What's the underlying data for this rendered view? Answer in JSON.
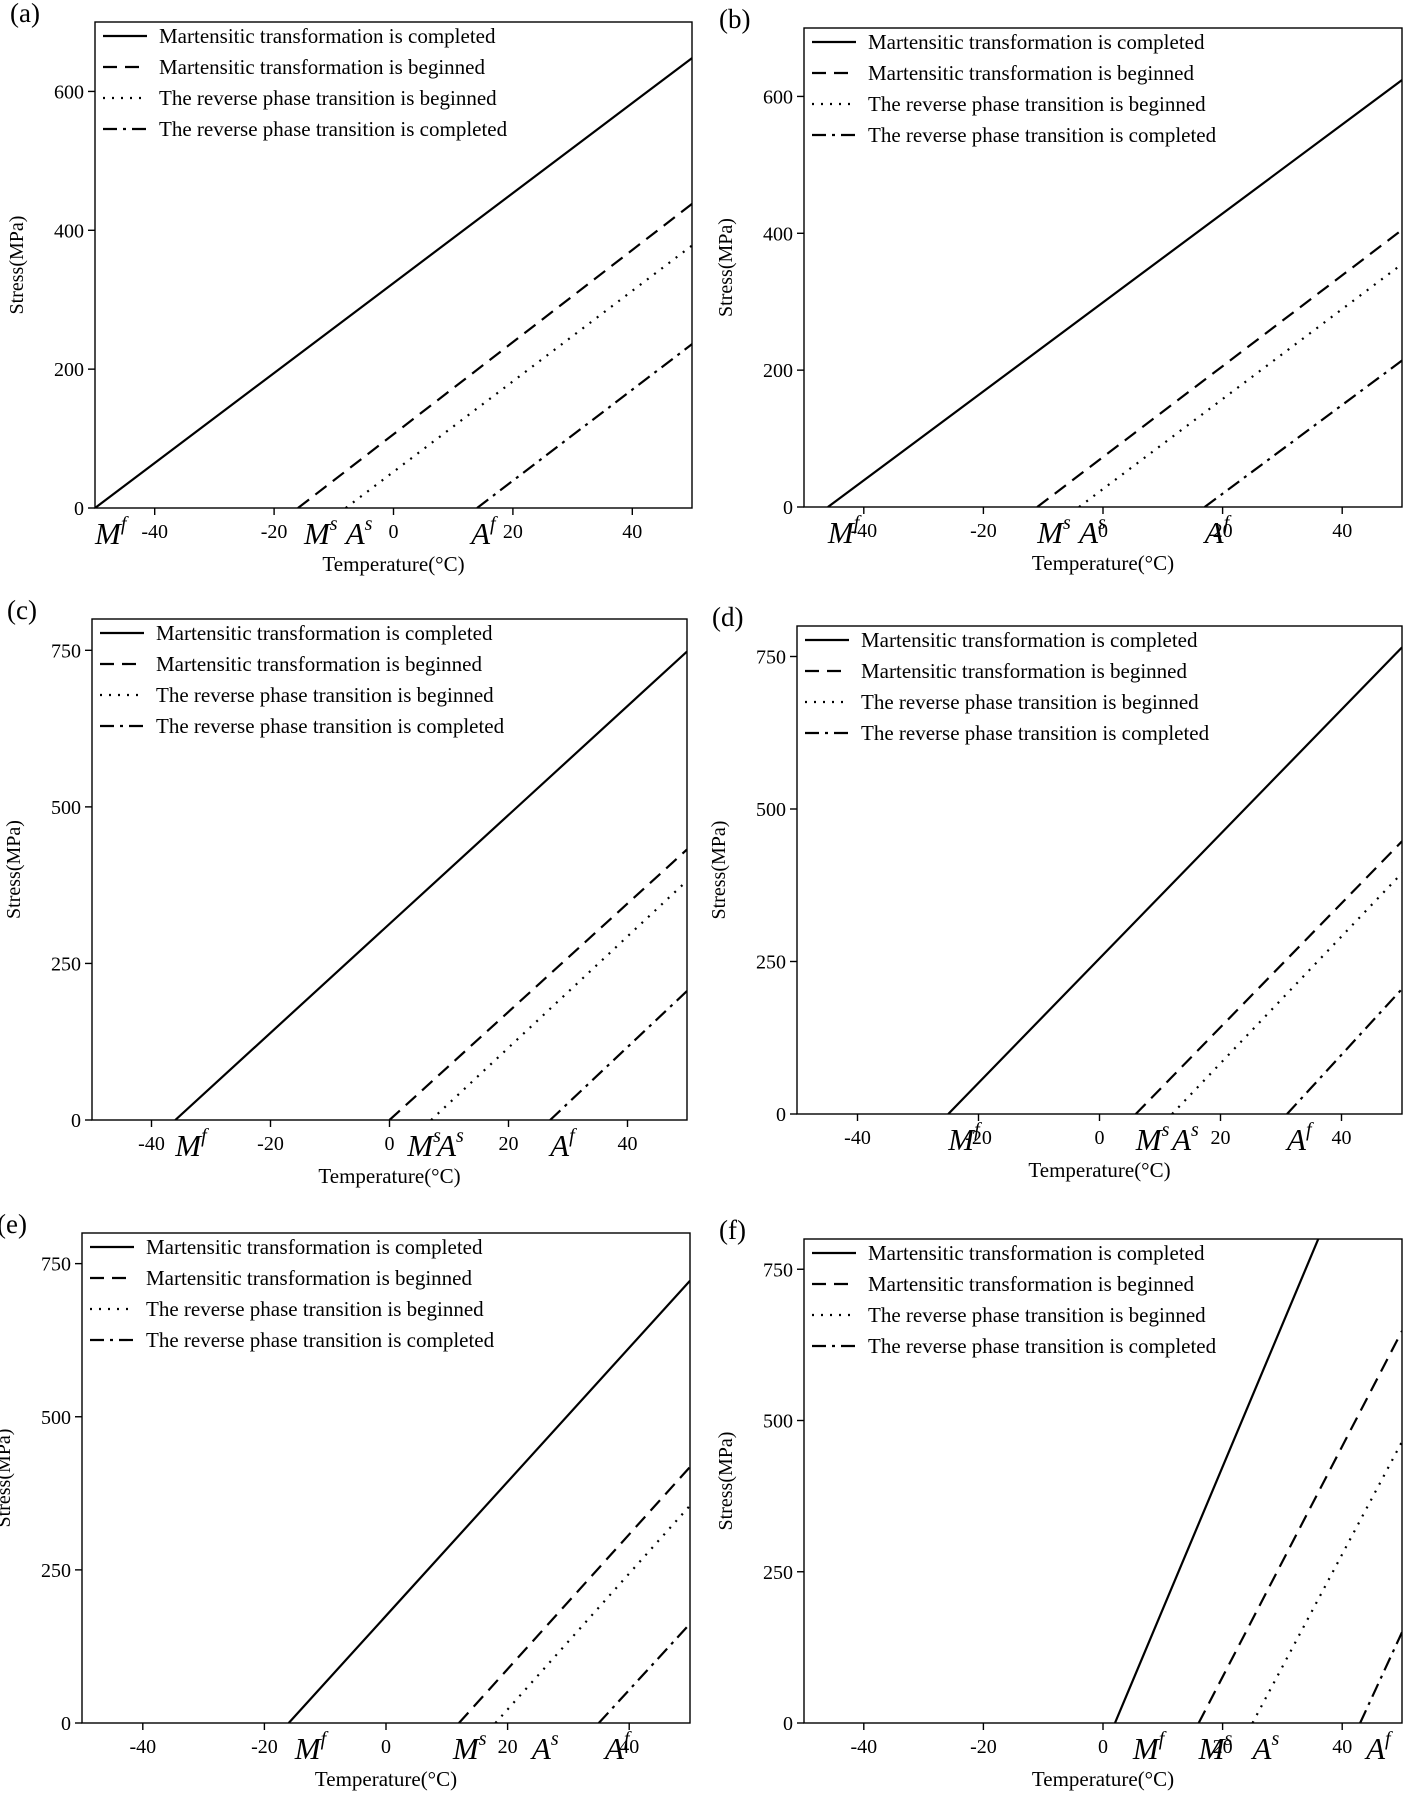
{
  "legend_labels": [
    "Martensitic transformation is completed",
    "Martensitic transformation is beginned",
    "The reverse phase transition is beginned",
    "The reverse phase transition is completed"
  ],
  "line_styles": [
    "solid",
    "dashed",
    "dotted",
    "dashdot"
  ],
  "colors": {
    "line": "#000000",
    "background": "#ffffff"
  },
  "chart_data": [
    {
      "type": "line",
      "panel_label": "(a)",
      "xlabel": "Temperature(°C)",
      "ylabel": "Stress(MPa)",
      "xlim": [
        -50,
        50
      ],
      "ylim": [
        0,
        700
      ],
      "xticks": [
        "-40",
        "-20",
        "0",
        "20",
        "40"
      ],
      "xtick_values": [
        -40,
        -20,
        0,
        20,
        40
      ],
      "yticks": [
        "0",
        "200",
        "400",
        "600"
      ],
      "ytick_values": [
        0,
        200,
        400,
        600
      ],
      "legend_position": "top-left",
      "series": [
        {
          "name": "Martensitic transformation is completed",
          "style": "solid",
          "x": [
            -50,
            50
          ],
          "y": [
            0,
            648
          ]
        },
        {
          "name": "Martensitic transformation is beginned",
          "style": "dashed",
          "x": [
            -16,
            50
          ],
          "y": [
            0,
            438
          ]
        },
        {
          "name": "The reverse phase transition is beginned",
          "style": "dotted",
          "x": [
            -8,
            50
          ],
          "y": [
            0,
            378
          ]
        },
        {
          "name": "The reverse phase transition is completed",
          "style": "dashdot",
          "x": [
            14,
            50
          ],
          "y": [
            0,
            236
          ]
        }
      ],
      "annotations": [
        {
          "base": "M",
          "sup": "f",
          "x": -50
        },
        {
          "base": "M",
          "sup": "s",
          "x": -15
        },
        {
          "base": "A",
          "sup": "s",
          "x": -8
        },
        {
          "base": "A",
          "sup": "f",
          "x": 13
        }
      ]
    },
    {
      "type": "line",
      "panel_label": "(b)",
      "xlabel": "Temperature(°C)",
      "ylabel": "Stress(MPa)",
      "xlim": [
        -50,
        50
      ],
      "ylim": [
        0,
        700
      ],
      "xticks": [
        "-40",
        "-20",
        "0",
        "20",
        "40"
      ],
      "xtick_values": [
        -40,
        -20,
        0,
        20,
        40
      ],
      "yticks": [
        "0",
        "200",
        "400",
        "600"
      ],
      "ytick_values": [
        0,
        200,
        400,
        600
      ],
      "legend_position": "top-left",
      "series": [
        {
          "name": "Martensitic transformation is completed",
          "style": "solid",
          "x": [
            -46,
            50
          ],
          "y": [
            0,
            624
          ]
        },
        {
          "name": "Martensitic transformation is beginned",
          "style": "dashed",
          "x": [
            -11,
            50
          ],
          "y": [
            0,
            405
          ]
        },
        {
          "name": "The reverse phase transition is beginned",
          "style": "dotted",
          "x": [
            -4,
            50
          ],
          "y": [
            0,
            355
          ]
        },
        {
          "name": "The reverse phase transition is completed",
          "style": "dashdot",
          "x": [
            17,
            50
          ],
          "y": [
            0,
            214
          ]
        }
      ],
      "annotations": [
        {
          "base": "M",
          "sup": "f",
          "x": -46
        },
        {
          "base": "M",
          "sup": "s",
          "x": -11
        },
        {
          "base": "A",
          "sup": "s",
          "x": -4
        },
        {
          "base": "A",
          "sup": "f",
          "x": 17
        }
      ]
    },
    {
      "type": "line",
      "panel_label": "(c)",
      "xlabel": "Temperature(°C)",
      "ylabel": "Stress(MPa)",
      "xlim": [
        -50,
        50
      ],
      "ylim": [
        0,
        800
      ],
      "xticks": [
        "-40",
        "-20",
        "0",
        "20",
        "40"
      ],
      "xtick_values": [
        -40,
        -20,
        0,
        20,
        40
      ],
      "yticks": [
        "0",
        "250",
        "500",
        "750"
      ],
      "ytick_values": [
        0,
        250,
        500,
        750
      ],
      "legend_position": "top-left",
      "series": [
        {
          "name": "Martensitic transformation is completed",
          "style": "solid",
          "x": [
            -36,
            50
          ],
          "y": [
            0,
            748
          ]
        },
        {
          "name": "Martensitic transformation is beginned",
          "style": "dashed",
          "x": [
            0,
            50
          ],
          "y": [
            0,
            432
          ]
        },
        {
          "name": "The reverse phase transition is beginned",
          "style": "dotted",
          "x": [
            7,
            50
          ],
          "y": [
            0,
            382
          ]
        },
        {
          "name": "The reverse phase transition is completed",
          "style": "dashdot",
          "x": [
            27,
            50
          ],
          "y": [
            0,
            206
          ]
        }
      ],
      "annotations": [
        {
          "base": "M",
          "sup": "f",
          "x": -36
        },
        {
          "base": "M",
          "sup": "s",
          "x": 3
        },
        {
          "base": "A",
          "sup": "s",
          "x": 8
        },
        {
          "base": "A",
          "sup": "f",
          "x": 27
        }
      ]
    },
    {
      "type": "line",
      "panel_label": "(d)",
      "xlabel": "Temperature(°C)",
      "ylabel": "Stress(MPa)",
      "xlim": [
        -50,
        50
      ],
      "ylim": [
        0,
        800
      ],
      "xticks": [
        "-40",
        "-20",
        "0",
        "20",
        "40"
      ],
      "xtick_values": [
        -40,
        -20,
        0,
        20,
        40
      ],
      "yticks": [
        "0",
        "250",
        "500",
        "750"
      ],
      "ytick_values": [
        0,
        250,
        500,
        750
      ],
      "legend_position": "top-left",
      "series": [
        {
          "name": "Martensitic transformation is completed",
          "style": "solid",
          "x": [
            -25,
            50
          ],
          "y": [
            0,
            765
          ]
        },
        {
          "name": "Martensitic transformation is beginned",
          "style": "dashed",
          "x": [
            6,
            50
          ],
          "y": [
            0,
            447
          ]
        },
        {
          "name": "The reverse phase transition is beginned",
          "style": "dotted",
          "x": [
            12,
            50
          ],
          "y": [
            0,
            395
          ]
        },
        {
          "name": "The reverse phase transition is completed",
          "style": "dashdot",
          "x": [
            31,
            50
          ],
          "y": [
            0,
            205
          ]
        }
      ],
      "annotations": [
        {
          "base": "M",
          "sup": "f",
          "x": -25
        },
        {
          "base": "M",
          "sup": "s",
          "x": 6
        },
        {
          "base": "A",
          "sup": "s",
          "x": 12
        },
        {
          "base": "A",
          "sup": "f",
          "x": 31
        }
      ]
    },
    {
      "type": "line",
      "panel_label": "(e)",
      "xlabel": "Temperature(°C)",
      "ylabel": "Stress(MPa)",
      "xlim": [
        -50,
        50
      ],
      "ylim": [
        0,
        800
      ],
      "xticks": [
        "-40",
        "-20",
        "0",
        "20",
        "40"
      ],
      "xtick_values": [
        -40,
        -20,
        0,
        20,
        40
      ],
      "yticks": [
        "0",
        "250",
        "500",
        "750"
      ],
      "ytick_values": [
        0,
        250,
        500,
        750
      ],
      "legend_position": "top-left",
      "series": [
        {
          "name": "Martensitic transformation is completed",
          "style": "solid",
          "x": [
            -16,
            50
          ],
          "y": [
            0,
            722
          ]
        },
        {
          "name": "Martensitic transformation is beginned",
          "style": "dashed",
          "x": [
            12,
            50
          ],
          "y": [
            0,
            418
          ]
        },
        {
          "name": "The reverse phase transition is beginned",
          "style": "dotted",
          "x": [
            18,
            50
          ],
          "y": [
            0,
            355
          ]
        },
        {
          "name": "The reverse phase transition is completed",
          "style": "dashdot",
          "x": [
            35,
            50
          ],
          "y": [
            0,
            162
          ]
        }
      ],
      "annotations": [
        {
          "base": "M",
          "sup": "f",
          "x": -15
        },
        {
          "base": "M",
          "sup": "s",
          "x": 11
        },
        {
          "base": "A",
          "sup": "s",
          "x": 24
        },
        {
          "base": "A",
          "sup": "f",
          "x": 36
        }
      ]
    },
    {
      "type": "line",
      "panel_label": "(f)",
      "xlabel": "Temperature(°C)",
      "ylabel": "Stress(MPa)",
      "xlim": [
        -50,
        50
      ],
      "ylim": [
        0,
        800
      ],
      "xticks": [
        "-40",
        "-20",
        "0",
        "20",
        "40"
      ],
      "xtick_values": [
        -40,
        -20,
        0,
        20,
        40
      ],
      "yticks": [
        "0",
        "250",
        "500",
        "750"
      ],
      "ytick_values": [
        0,
        250,
        500,
        750
      ],
      "legend_position": "top-left",
      "series": [
        {
          "name": "Martensitic transformation is completed",
          "style": "solid",
          "x": [
            2,
            36
          ],
          "y": [
            0,
            800
          ]
        },
        {
          "name": "Martensitic transformation is beginned",
          "style": "dashed",
          "x": [
            16,
            50
          ],
          "y": [
            0,
            648
          ]
        },
        {
          "name": "The reverse phase transition is beginned",
          "style": "dotted",
          "x": [
            25,
            50
          ],
          "y": [
            0,
            465
          ]
        },
        {
          "name": "The reverse phase transition is completed",
          "style": "dashdot",
          "x": [
            43,
            50
          ],
          "y": [
            0,
            150
          ]
        }
      ],
      "annotations": [
        {
          "base": "M",
          "sup": "f",
          "x": 5
        },
        {
          "base": "M",
          "sup": "s",
          "x": 16
        },
        {
          "base": "A",
          "sup": "s",
          "x": 25
        },
        {
          "base": "A",
          "sup": "f",
          "x": 44
        }
      ]
    }
  ]
}
